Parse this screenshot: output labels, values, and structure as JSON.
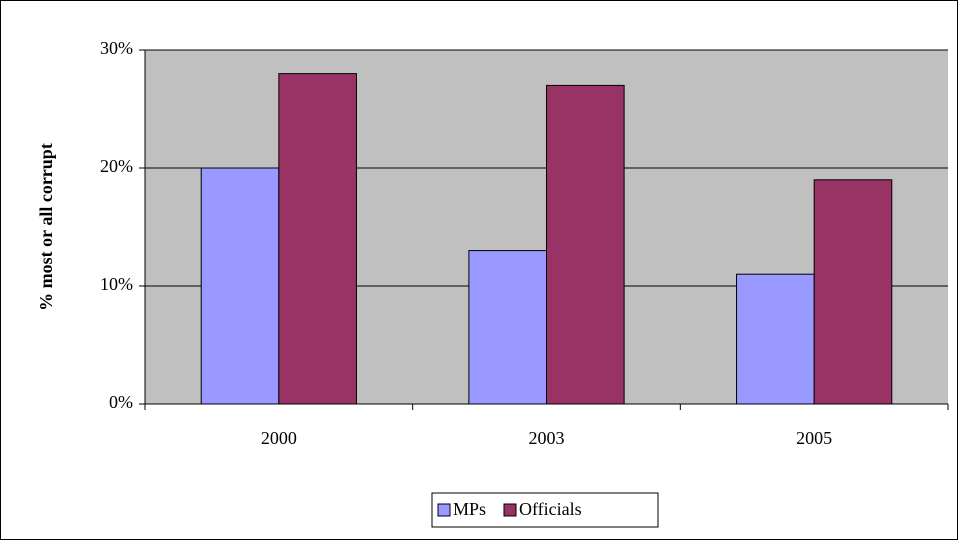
{
  "chart_data": {
    "type": "bar",
    "y_label": "% most or all corrupt",
    "categories": [
      "2000",
      "2003",
      "2005"
    ],
    "series": [
      {
        "name": "MPs",
        "color": "#9999ff",
        "values": [
          20,
          13,
          11
        ]
      },
      {
        "name": "Officials",
        "color": "#993366",
        "values": [
          28,
          27,
          19
        ]
      }
    ],
    "ylim": [
      0,
      30
    ],
    "yticks": [
      {
        "value": 0,
        "label": "0%"
      },
      {
        "value": 10,
        "label": "10%"
      },
      {
        "value": 20,
        "label": "20%"
      },
      {
        "value": 30,
        "label": "30%"
      }
    ],
    "grid": true,
    "plot_background": "#c0c0c0",
    "legend": "bottom"
  }
}
